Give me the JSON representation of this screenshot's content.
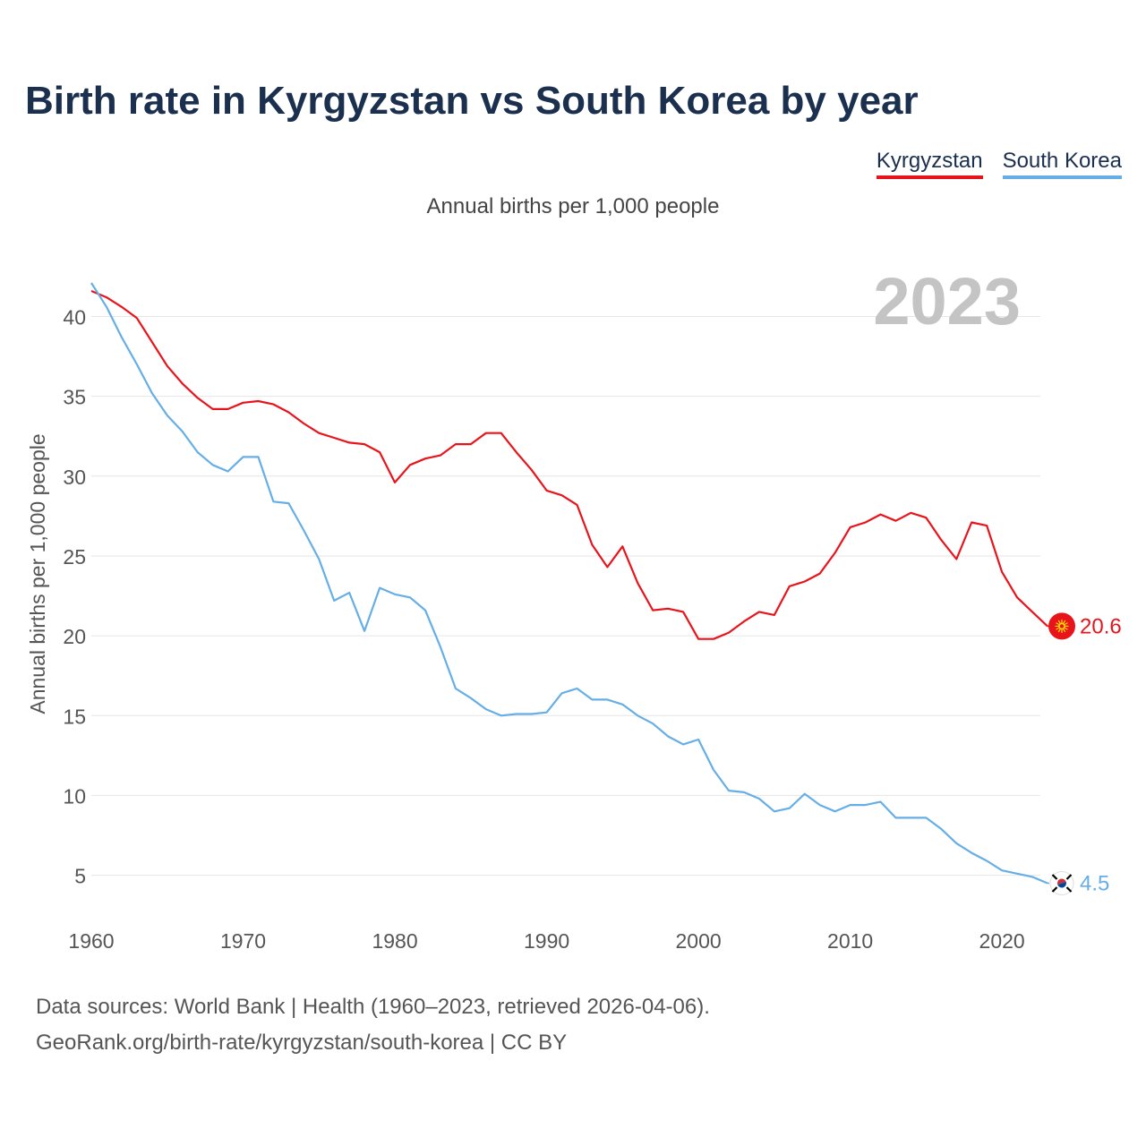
{
  "header": {
    "title": "Birth rate in Kyrgyzstan vs South Korea by year",
    "subtitle": "Annual births per 1,000 people"
  },
  "colors": {
    "kyrgyzstan": "#e8141c",
    "south_korea": "#66aee6",
    "title": "#1b2f4e",
    "grid": "#e6e6e6",
    "year_watermark": "#c4c4c4"
  },
  "footer": {
    "line1": "Data sources: World Bank | Health (1960–2023, retrieved 2026-04-06).",
    "line2": "GeoRank.org/birth-rate/kyrgyzstan/south-korea | CC BY"
  },
  "chart_data": {
    "type": "line",
    "title": "Birth rate in Kyrgyzstan vs South Korea by year",
    "subtitle": "Annual births per 1,000 people",
    "xlabel": "",
    "ylabel": "Annual births per 1,000 people",
    "year_label": "2023",
    "xlim": [
      1960,
      2023
    ],
    "ylim": [
      1.5,
      43
    ],
    "xticks": [
      1960,
      1970,
      1980,
      1990,
      2000,
      2010,
      2020
    ],
    "yticks": [
      5,
      10,
      15,
      20,
      25,
      30,
      35,
      40
    ],
    "grid": true,
    "legend": "top-right",
    "x": [
      1960,
      1961,
      1962,
      1963,
      1964,
      1965,
      1966,
      1967,
      1968,
      1969,
      1970,
      1971,
      1972,
      1973,
      1974,
      1975,
      1976,
      1977,
      1978,
      1979,
      1980,
      1981,
      1982,
      1983,
      1984,
      1985,
      1986,
      1987,
      1988,
      1989,
      1990,
      1991,
      1992,
      1993,
      1994,
      1995,
      1996,
      1997,
      1998,
      1999,
      2000,
      2001,
      2002,
      2003,
      2004,
      2005,
      2006,
      2007,
      2008,
      2009,
      2010,
      2011,
      2012,
      2013,
      2014,
      2015,
      2016,
      2017,
      2018,
      2019,
      2020,
      2021,
      2022,
      2023
    ],
    "series": [
      {
        "name": "Kyrgyzstan",
        "color": "#e8141c",
        "end_label": "20.6",
        "values": [
          41.6,
          41.2,
          40.6,
          39.9,
          38.4,
          36.9,
          35.8,
          34.9,
          34.2,
          34.2,
          34.6,
          34.7,
          34.5,
          34.0,
          33.3,
          32.7,
          32.4,
          32.1,
          32.0,
          31.5,
          29.6,
          30.7,
          31.1,
          31.3,
          32.0,
          32.0,
          32.7,
          32.7,
          31.5,
          30.4,
          29.1,
          28.8,
          28.2,
          25.7,
          24.3,
          25.6,
          23.3,
          21.6,
          21.7,
          21.5,
          19.8,
          19.8,
          20.2,
          20.9,
          21.5,
          21.3,
          23.1,
          23.4,
          23.9,
          25.2,
          26.8,
          27.1,
          27.6,
          27.2,
          27.7,
          27.4,
          26.0,
          24.8,
          27.1,
          26.9,
          24.0,
          22.4,
          21.5,
          20.6
        ]
      },
      {
        "name": "South Korea",
        "color": "#66aee6",
        "end_label": "4.5",
        "values": [
          42.1,
          40.6,
          38.7,
          37.0,
          35.2,
          33.8,
          32.8,
          31.5,
          30.7,
          30.3,
          31.2,
          31.2,
          28.4,
          28.3,
          26.6,
          24.8,
          22.2,
          22.7,
          20.3,
          23.0,
          22.6,
          22.4,
          21.6,
          19.3,
          16.7,
          16.1,
          15.4,
          15.0,
          15.1,
          15.1,
          15.2,
          16.4,
          16.7,
          16.0,
          16.0,
          15.7,
          15.0,
          14.5,
          13.7,
          13.2,
          13.5,
          11.6,
          10.3,
          10.2,
          9.8,
          9.0,
          9.2,
          10.1,
          9.4,
          9.0,
          9.4,
          9.4,
          9.6,
          8.6,
          8.6,
          8.6,
          7.9,
          7.0,
          6.4,
          5.9,
          5.3,
          5.1,
          4.9,
          4.5
        ]
      }
    ]
  }
}
